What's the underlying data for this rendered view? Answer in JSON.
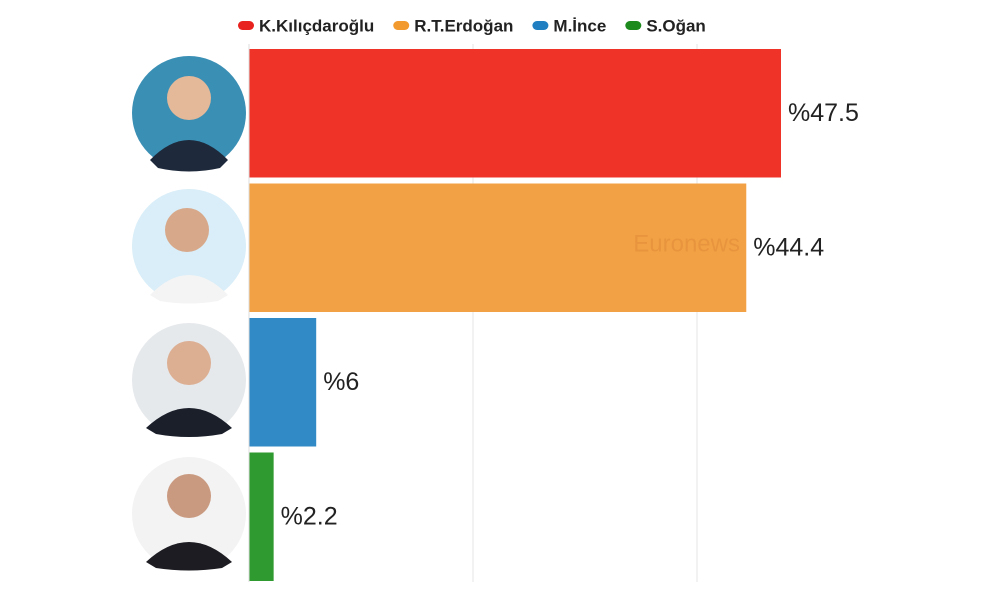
{
  "watermark": "Euronews",
  "chart_data": {
    "type": "bar",
    "orientation": "horizontal",
    "categories": [
      "K.Kılıçdaroğlu",
      "R.T.Erdoğan",
      "M.İnce",
      "S.Oğan"
    ],
    "values": [
      47.5,
      44.4,
      6,
      2.2
    ],
    "value_labels": [
      "%47.5",
      "%44.4",
      "%6",
      "%2.2"
    ],
    "colors": [
      "#ef3329",
      "#f2a244",
      "#3189c6",
      "#2f9a2f"
    ],
    "legend_colors": [
      "#e8231f",
      "#f29a2e",
      "#1f7fc1",
      "#1d8a1d"
    ],
    "xlim": [
      0,
      50
    ],
    "xticks": [
      20,
      40
    ],
    "grid": true,
    "legend": "top"
  }
}
